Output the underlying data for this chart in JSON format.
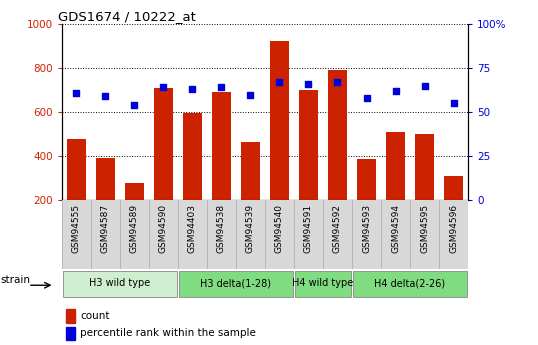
{
  "title": "GDS1674 / 10222_at",
  "samples": [
    "GSM94555",
    "GSM94587",
    "GSM94589",
    "GSM94590",
    "GSM94403",
    "GSM94538",
    "GSM94539",
    "GSM94540",
    "GSM94591",
    "GSM94592",
    "GSM94593",
    "GSM94594",
    "GSM94595",
    "GSM94596"
  ],
  "counts": [
    480,
    390,
    280,
    710,
    595,
    693,
    465,
    925,
    700,
    790,
    385,
    510,
    500,
    310
  ],
  "percentiles": [
    61,
    59,
    54,
    64,
    63,
    64,
    60,
    67,
    66,
    67,
    58,
    62,
    65,
    55
  ],
  "bar_color": "#cc2200",
  "dot_color": "#0000dd",
  "left_axis_color": "#cc2200",
  "right_axis_color": "#0000dd",
  "ylim_left": [
    200,
    1000
  ],
  "ylim_right": [
    0,
    100
  ],
  "bg_color": "#ffffff",
  "xticklabel_bg": "#d8d8d8",
  "strain_label": "strain",
  "legend_count": "count",
  "legend_percentile": "percentile rank within the sample",
  "group_defs": [
    {
      "label": "H3 wild type",
      "start": 0,
      "end": 3,
      "color": "#d0eed0"
    },
    {
      "label": "H3 delta(1-28)",
      "start": 4,
      "end": 7,
      "color": "#80dc80"
    },
    {
      "label": "H4 wild type",
      "start": 8,
      "end": 9,
      "color": "#80dc80"
    },
    {
      "label": "H4 delta(2-26)",
      "start": 10,
      "end": 13,
      "color": "#80dc80"
    }
  ]
}
